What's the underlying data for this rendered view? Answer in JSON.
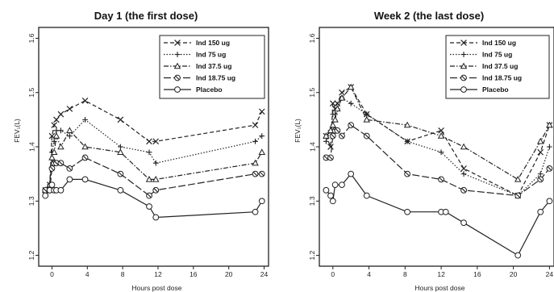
{
  "chart_data": [
    {
      "type": "line",
      "title": "Day 1 (the first dose)",
      "xlabel": "Hours post dose",
      "ylabel": "FEV₁(L)",
      "xlim": [
        -1.5,
        24.5
      ],
      "ylim": [
        1.18,
        1.62
      ],
      "xticks": [
        0,
        4,
        8,
        12,
        16,
        20,
        24
      ],
      "yticks": [
        1.2,
        1.3,
        1.4,
        1.5,
        1.6
      ],
      "legend_position": "top-right",
      "series": [
        {
          "name": "Ind 150 ug",
          "marker": "x",
          "dash": "dashed",
          "x": [
            -0.75,
            -0.25,
            0,
            0.25,
            0.5,
            1,
            2,
            3.75,
            7.75,
            11,
            11.75,
            23,
            23.75
          ],
          "y": [
            1.32,
            1.33,
            1.42,
            1.44,
            1.45,
            1.46,
            1.47,
            1.485,
            1.45,
            1.41,
            1.41,
            1.44,
            1.465
          ]
        },
        {
          "name": "Ind 75 ug",
          "marker": "plus",
          "dash": "dotted",
          "x": [
            -0.75,
            -0.25,
            0,
            0.25,
            0.5,
            1,
            2,
            3.75,
            7.75,
            11,
            11.75,
            23,
            23.75
          ],
          "y": [
            1.32,
            1.33,
            1.39,
            1.41,
            1.43,
            1.43,
            1.42,
            1.45,
            1.4,
            1.39,
            1.37,
            1.41,
            1.42
          ]
        },
        {
          "name": "Ind 37.5 ug",
          "marker": "triangle",
          "dash": "dashdot",
          "x": [
            -0.75,
            -0.25,
            0,
            0.25,
            0.5,
            1,
            2,
            3.75,
            7.75,
            11,
            11.75,
            23,
            23.75
          ],
          "y": [
            1.32,
            1.33,
            1.38,
            1.39,
            1.42,
            1.4,
            1.43,
            1.4,
            1.39,
            1.34,
            1.34,
            1.37,
            1.39
          ]
        },
        {
          "name": "Ind 18.75 ug",
          "marker": "diamond-half",
          "dash": "longdash",
          "x": [
            -0.75,
            -0.25,
            0,
            0.25,
            0.5,
            1,
            2,
            3.75,
            7.75,
            11,
            11.75,
            23,
            23.75
          ],
          "y": [
            1.32,
            1.32,
            1.36,
            1.37,
            1.37,
            1.37,
            1.36,
            1.38,
            1.35,
            1.31,
            1.32,
            1.35,
            1.35
          ]
        },
        {
          "name": "Placebo",
          "marker": "circle",
          "dash": "solid",
          "x": [
            -0.75,
            -0.25,
            0,
            0.25,
            0.5,
            1,
            2,
            3.75,
            7.75,
            11,
            11.75,
            23,
            23.75
          ],
          "y": [
            1.31,
            1.32,
            1.33,
            1.32,
            1.32,
            1.32,
            1.34,
            1.34,
            1.32,
            1.29,
            1.27,
            1.28,
            1.3
          ]
        }
      ]
    },
    {
      "type": "line",
      "title": "Week 2 (the last dose)",
      "xlabel": "Hours post dose",
      "ylabel": "FEV₁(L)",
      "xlim": [
        -1.5,
        24.5
      ],
      "ylim": [
        1.18,
        1.62
      ],
      "xticks": [
        0,
        4,
        8,
        12,
        16,
        20,
        24
      ],
      "yticks": [
        1.2,
        1.3,
        1.4,
        1.5,
        1.6
      ],
      "legend_position": "top-right",
      "series": [
        {
          "name": "Ind 150 ug",
          "marker": "x",
          "dash": "dashed",
          "x": [
            -0.75,
            -0.25,
            0,
            0.25,
            0.5,
            1,
            2,
            3.75,
            8.25,
            12,
            14.5,
            20.5,
            23,
            24
          ],
          "y": [
            1.42,
            1.4,
            1.48,
            1.47,
            1.48,
            1.5,
            1.51,
            1.46,
            1.41,
            1.43,
            1.36,
            1.31,
            1.39,
            1.44
          ]
        },
        {
          "name": "Ind 75 ug",
          "marker": "plus",
          "dash": "dotted",
          "x": [
            -0.75,
            -0.25,
            0,
            0.25,
            0.5,
            1,
            2,
            3.75,
            8.25,
            12,
            14.5,
            20.5,
            23,
            24
          ],
          "y": [
            1.41,
            1.43,
            1.46,
            1.46,
            1.47,
            1.49,
            1.48,
            1.46,
            1.41,
            1.39,
            1.35,
            1.31,
            1.35,
            1.4
          ]
        },
        {
          "name": "Ind 37.5 ug",
          "marker": "triangle",
          "dash": "dashdot",
          "x": [
            -0.75,
            -0.25,
            0,
            0.25,
            0.5,
            1,
            2,
            3.75,
            8.25,
            12,
            14.5,
            20.5,
            23,
            24
          ],
          "y": [
            1.42,
            1.43,
            1.44,
            1.45,
            1.47,
            1.49,
            1.51,
            1.45,
            1.44,
            1.42,
            1.4,
            1.34,
            1.41,
            1.44
          ]
        },
        {
          "name": "Ind 18.75 ug",
          "marker": "diamond-half",
          "dash": "longdash",
          "x": [
            -0.75,
            -0.25,
            0,
            0.25,
            0.5,
            1,
            2,
            3.75,
            8.25,
            12,
            14.5,
            20.5,
            23,
            24
          ],
          "y": [
            1.38,
            1.38,
            1.42,
            1.43,
            1.43,
            1.42,
            1.44,
            1.42,
            1.35,
            1.34,
            1.32,
            1.31,
            1.34,
            1.36
          ]
        },
        {
          "name": "Placebo",
          "marker": "circle",
          "dash": "solid",
          "x": [
            -0.75,
            -0.25,
            0,
            0.25,
            1,
            2,
            3.75,
            8.25,
            12,
            12.5,
            14.5,
            20.5,
            23,
            24
          ],
          "y": [
            1.32,
            1.31,
            1.3,
            1.33,
            1.33,
            1.35,
            1.31,
            1.28,
            1.28,
            1.28,
            1.26,
            1.2,
            1.28,
            1.3
          ]
        }
      ]
    }
  ]
}
